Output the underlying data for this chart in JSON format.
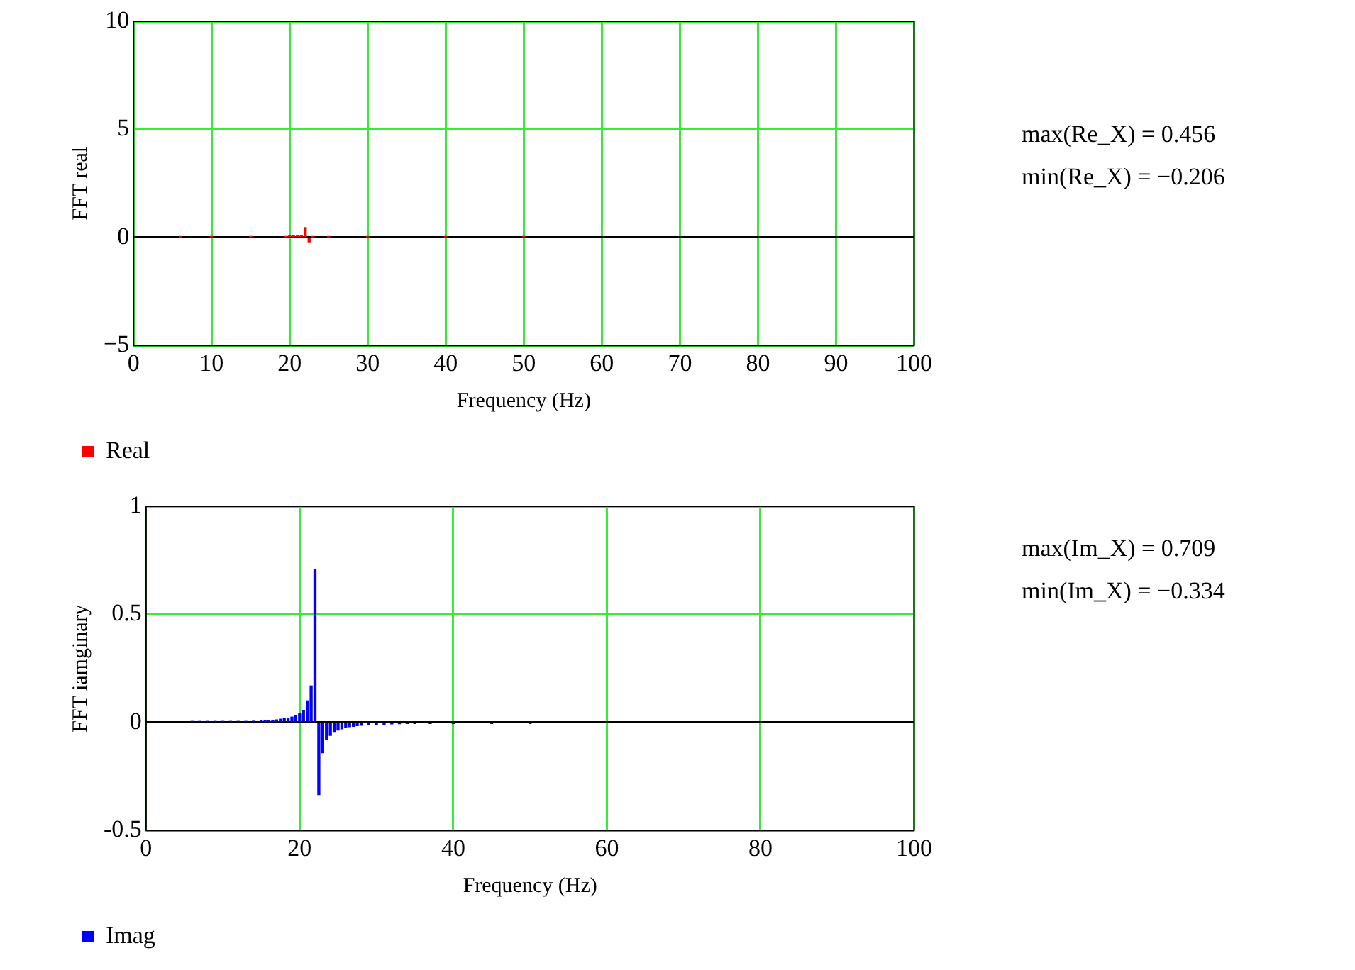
{
  "chart_data": [
    {
      "type": "bar",
      "xlabel": "Frequency (Hz)",
      "ylabel": "FFT real",
      "xlim": [
        0,
        100
      ],
      "xticks": [
        0,
        10,
        20,
        30,
        40,
        50,
        60,
        70,
        80,
        90,
        100
      ],
      "ylim": [
        -5,
        10
      ],
      "yticks": [
        {
          "value": -5,
          "label": "−5"
        },
        0,
        5,
        10
      ],
      "grid": true,
      "legend": "bottom left",
      "series": [
        {
          "name": "Real",
          "color": "#ff0000",
          "x": [
            6,
            10,
            15,
            19.5,
            20,
            20.5,
            21,
            21.5,
            22,
            22.5,
            23,
            25,
            30,
            40,
            50
          ],
          "values": [
            0.02,
            0.02,
            0.02,
            0.02,
            0.1,
            0.1,
            0.1,
            0.1,
            0.456,
            -0.206,
            0.02,
            0.02,
            0.02,
            0.02,
            0.02
          ]
        }
      ],
      "annotations": [
        "max(Re_X) = 0.456",
        "min(Re_X) = −0.206"
      ]
    },
    {
      "type": "bar",
      "xlabel": "Frequency (Hz)",
      "ylabel": "FFT iamginary",
      "xlim": [
        0,
        100
      ],
      "xticks": [
        0,
        20,
        40,
        60,
        80,
        100
      ],
      "ylim": [
        -0.5,
        1
      ],
      "yticks": [
        -0.5,
        0,
        0.5,
        1
      ],
      "grid": true,
      "legend": "bottom left",
      "series": [
        {
          "name": "Imag",
          "color": "#0000ff",
          "x": [
            6,
            7,
            8,
            9,
            10,
            11,
            12,
            13,
            14,
            15,
            15.5,
            16,
            16.5,
            17,
            17.5,
            18,
            18.5,
            19,
            19.5,
            20,
            20.5,
            21,
            21.5,
            22,
            22.5,
            23,
            23.5,
            24,
            24.5,
            25,
            25.5,
            26,
            26.5,
            27,
            27.5,
            28,
            29,
            30,
            31,
            32,
            33,
            34,
            35,
            37,
            40,
            45,
            50
          ],
          "values": [
            0.005,
            0.005,
            0.005,
            0.005,
            0.005,
            0.005,
            0.005,
            0.005,
            0.006,
            0.007,
            0.008,
            0.01,
            0.01,
            0.012,
            0.015,
            0.018,
            0.02,
            0.025,
            0.03,
            0.04,
            0.053,
            0.1,
            0.169,
            0.709,
            -0.334,
            -0.14,
            -0.08,
            -0.06,
            -0.045,
            -0.035,
            -0.03,
            -0.025,
            -0.02,
            -0.018,
            -0.015,
            -0.013,
            -0.011,
            -0.01,
            -0.008,
            -0.007,
            -0.006,
            -0.005,
            -0.005,
            -0.003,
            -0.002,
            -0.002,
            -0.002
          ]
        }
      ],
      "annotations": [
        "max(Im_X) = 0.709",
        "min(Im_X) = −0.334"
      ]
    }
  ]
}
